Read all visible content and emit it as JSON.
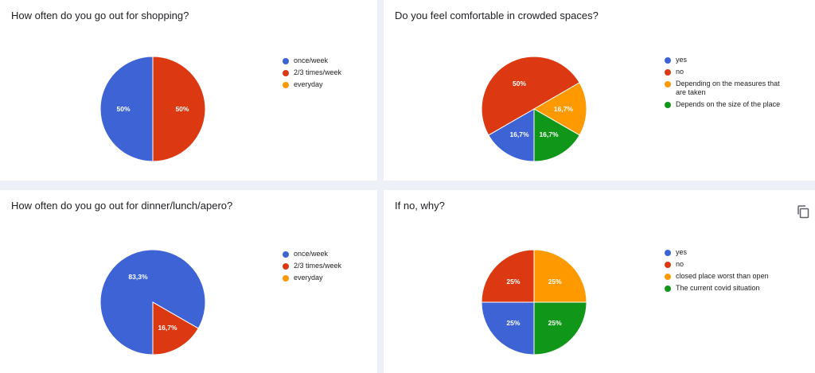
{
  "chart_data": [
    {
      "type": "pie",
      "title": "How often do you go out for shopping?",
      "legend": [
        "once/week",
        "2/3 times/week",
        "everyday"
      ],
      "values": [
        50,
        50,
        0
      ],
      "labels": [
        "50%",
        "50%",
        ""
      ],
      "colors": [
        "#3d63d4",
        "#dc3912",
        "#ff9900"
      ],
      "legend_position": "right"
    },
    {
      "type": "pie",
      "title": "Do you feel comfortable in crowded spaces?",
      "legend": [
        "yes",
        "no",
        "Depending on the measures that are taken",
        "Depends on the size of the place"
      ],
      "values": [
        16.7,
        50,
        16.7,
        16.7
      ],
      "labels": [
        "16,7%",
        "50%",
        "16,7%",
        "16,7%"
      ],
      "colors": [
        "#3d63d4",
        "#dc3912",
        "#ff9900",
        "#109618"
      ],
      "legend_position": "right"
    },
    {
      "type": "pie",
      "title": "How often do you go out for dinner/lunch/apero?",
      "legend": [
        "once/week",
        "2/3 times/week",
        "everyday"
      ],
      "values": [
        83.3,
        16.7,
        0
      ],
      "labels": [
        "83,3%",
        "16,7%",
        ""
      ],
      "colors": [
        "#3d63d4",
        "#dc3912",
        "#ff9900"
      ],
      "legend_position": "right"
    },
    {
      "type": "pie",
      "title": "If no, why?",
      "legend": [
        "yes",
        "no",
        "closed place worst than open",
        "The current covid situation"
      ],
      "values": [
        25,
        25,
        25,
        25
      ],
      "labels": [
        "25%",
        "25%",
        "25%",
        "25%"
      ],
      "colors": [
        "#3d63d4",
        "#dc3912",
        "#ff9900",
        "#109618"
      ],
      "legend_position": "right"
    }
  ],
  "icons": {
    "copy": "copy-icon"
  }
}
